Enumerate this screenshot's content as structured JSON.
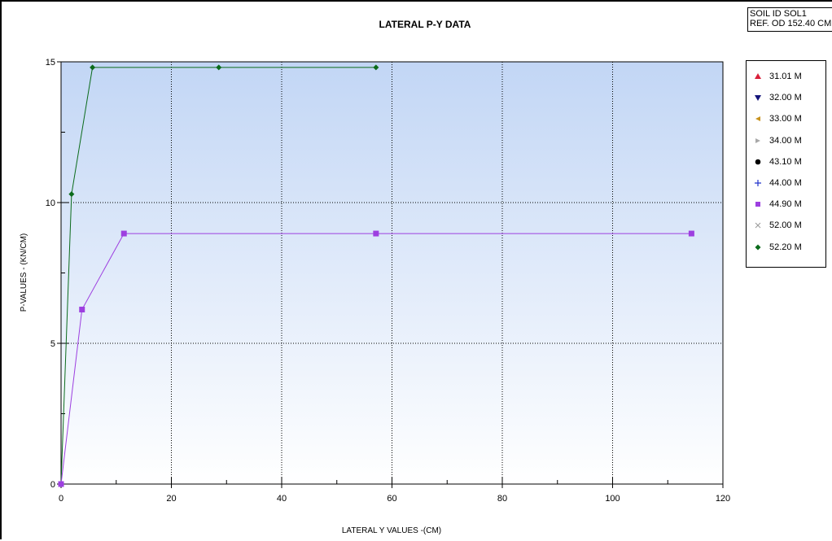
{
  "header": {
    "title": "LATERAL P-Y DATA",
    "soil_id": "SOIL ID SOL1",
    "ref_od": "REF. OD 152.40 CM"
  },
  "colors": {
    "green": "#0b6b1b",
    "purple": "#9d3fe0",
    "plot_gradient_top": "#c2d6f5",
    "plot_gradient_bottom": "#ffffff"
  },
  "legend": [
    {
      "label": "31.01 M",
      "icon": "triangle-up",
      "color": "#d9203a"
    },
    {
      "label": "32.00 M",
      "icon": "triangle-down",
      "color": "#14147a"
    },
    {
      "label": "33.00 M",
      "icon": "triangle-left",
      "color": "#c8921e"
    },
    {
      "label": "34.00 M",
      "icon": "triangle-right",
      "color": "#a8a8a8"
    },
    {
      "label": "43.10 M",
      "icon": "circle",
      "color": "#000000"
    },
    {
      "label": "44.00 M",
      "icon": "plus",
      "color": "#2233cc"
    },
    {
      "label": "44.90 M",
      "icon": "square",
      "color": "#9d3fe0"
    },
    {
      "label": "52.00 M",
      "icon": "cross",
      "color": "#999999"
    },
    {
      "label": "52.20 M",
      "icon": "diamond",
      "color": "#0b6b1b"
    }
  ],
  "chart_data": {
    "type": "line",
    "title": "LATERAL P-Y DATA",
    "xlabel": "LATERAL Y VALUES -(CM)",
    "ylabel": "P-VALUES - (KN/CM)",
    "xlim": [
      0,
      120
    ],
    "ylim": [
      0,
      15
    ],
    "x_ticks": [
      "0",
      "20",
      "40",
      "60",
      "80",
      "100",
      "120"
    ],
    "y_ticks": [
      "0",
      "5",
      "10",
      "15"
    ],
    "grid": true,
    "legend_position": "right",
    "series": [
      {
        "name": "52.20 M",
        "color": "#0b6b1b",
        "marker": "diamond",
        "points": [
          [
            0,
            0
          ],
          [
            1.9,
            10.3
          ],
          [
            5.7,
            14.8
          ],
          [
            28.6,
            14.8
          ],
          [
            57.1,
            14.8
          ]
        ]
      },
      {
        "name": "44.90 M",
        "color": "#9d3fe0",
        "marker": "square",
        "points": [
          [
            0,
            0
          ],
          [
            3.8,
            6.2
          ],
          [
            11.4,
            8.9
          ],
          [
            57.1,
            8.9
          ],
          [
            114.3,
            8.9
          ]
        ]
      }
    ]
  }
}
